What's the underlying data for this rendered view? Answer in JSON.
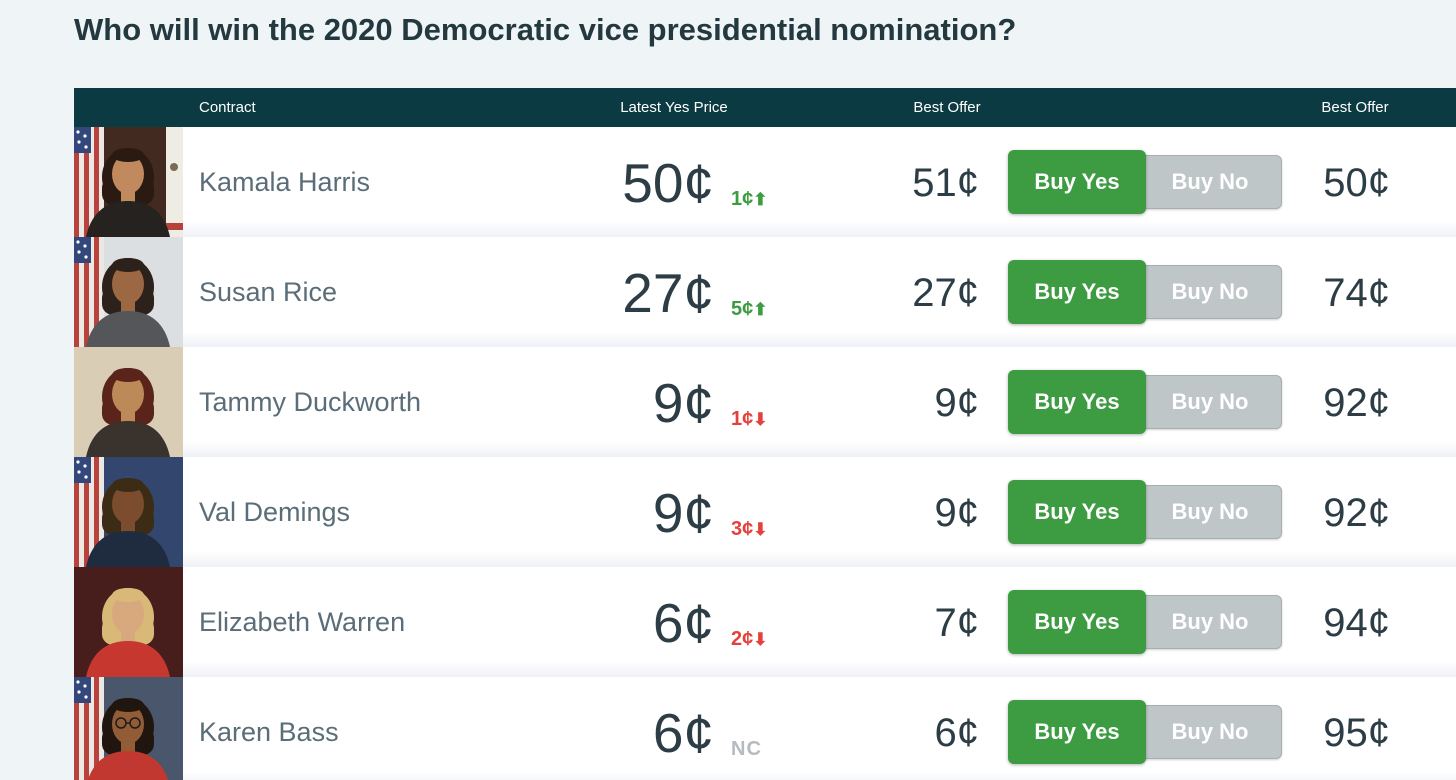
{
  "page": {
    "title": "Who will win the 2020 Democratic vice presidential nomination?"
  },
  "colors": {
    "page_bg": "#eff5f6",
    "header_bg": "#0c3a43",
    "buy_yes_green": "#3d9b41",
    "buy_no_gray": "#bec6c8",
    "up_green": "#3d9b41",
    "down_red": "#e2423b",
    "nc_gray": "#b5bbc1"
  },
  "table": {
    "headers": {
      "contract": "Contract",
      "latest_yes_price": "Latest Yes Price",
      "best_offer_yes": "Best Offer",
      "best_offer_no": "Best Offer"
    },
    "buy_yes_label": "Buy Yes",
    "buy_no_label": "Buy No",
    "rows": [
      {
        "name": "Kamala Harris",
        "latest_yes_price": "50¢",
        "change": "1¢",
        "change_dir": "up",
        "best_offer_yes": "51¢",
        "best_offer_no": "50¢",
        "avatar": {
          "bg": "#432a20",
          "flag": true,
          "accent": "#efece4",
          "hair": "#2a1a12",
          "skin": "#c08a5e",
          "jacket": "#26221f",
          "glasses": false
        }
      },
      {
        "name": "Susan Rice",
        "latest_yes_price": "27¢",
        "change": "5¢",
        "change_dir": "up",
        "best_offer_yes": "27¢",
        "best_offer_no": "74¢",
        "avatar": {
          "bg": "#dcdfe2",
          "flag": true,
          "accent": "",
          "hair": "#2c211b",
          "skin": "#9c6743",
          "jacket": "#55565a",
          "glasses": false
        }
      },
      {
        "name": "Tammy Duckworth",
        "latest_yes_price": "9¢",
        "change": "1¢",
        "change_dir": "down",
        "best_offer_yes": "9¢",
        "best_offer_no": "92¢",
        "avatar": {
          "bg": "#d9cdb6",
          "flag": false,
          "accent": "",
          "hair": "#5b241a",
          "skin": "#bc8a58",
          "jacket": "#39322d",
          "glasses": false
        }
      },
      {
        "name": "Val Demings",
        "latest_yes_price": "9¢",
        "change": "3¢",
        "change_dir": "down",
        "best_offer_yes": "9¢",
        "best_offer_no": "92¢",
        "avatar": {
          "bg": "#32466e",
          "flag": true,
          "accent": "",
          "hair": "#3c2c16",
          "skin": "#7c4c2e",
          "jacket": "#1f2c3f",
          "glasses": false
        }
      },
      {
        "name": "Elizabeth Warren",
        "latest_yes_price": "6¢",
        "change": "2¢",
        "change_dir": "down",
        "best_offer_yes": "7¢",
        "best_offer_no": "94¢",
        "avatar": {
          "bg": "#471e1c",
          "flag": false,
          "accent": "",
          "hair": "#d9b977",
          "skin": "#d8a87e",
          "jacket": "#c6372f",
          "glasses": false
        }
      },
      {
        "name": "Karen Bass",
        "latest_yes_price": "6¢",
        "change": "NC",
        "change_dir": "none",
        "best_offer_yes": "6¢",
        "best_offer_no": "95¢",
        "avatar": {
          "bg": "#49566c",
          "flag": true,
          "accent": "",
          "hair": "#20160f",
          "skin": "#925d36",
          "jacket": "#c03830",
          "glasses": true
        }
      }
    ]
  }
}
